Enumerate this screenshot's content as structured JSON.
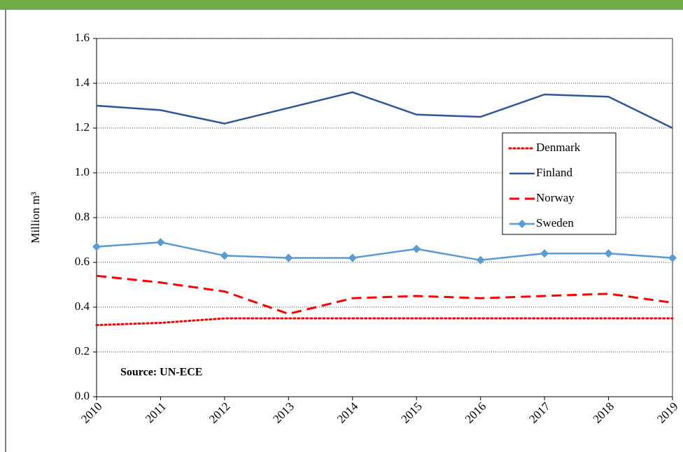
{
  "chart_data": {
    "type": "line",
    "y_label": "Million m³",
    "annotation": "Source: UN-ECE",
    "categories": [
      "2010",
      "2011",
      "2012",
      "2013",
      "2014",
      "2015",
      "2016",
      "2017",
      "2018",
      "2019"
    ],
    "series": [
      {
        "name": "Denmark",
        "color": "#ff0000",
        "dash": "dotted",
        "values": [
          0.32,
          0.33,
          0.35,
          0.35,
          0.35,
          0.35,
          0.35,
          0.35,
          0.35,
          0.35
        ]
      },
      {
        "name": "Finland",
        "color": "#2f5597",
        "dash": "solid",
        "values": [
          1.3,
          1.28,
          1.22,
          1.29,
          1.36,
          1.26,
          1.25,
          1.35,
          1.34,
          1.2
        ]
      },
      {
        "name": "Norway",
        "color": "#ff0000",
        "dash": "dashed",
        "values": [
          0.54,
          0.51,
          0.47,
          0.37,
          0.44,
          0.45,
          0.44,
          0.45,
          0.46,
          0.42
        ]
      },
      {
        "name": "Sweden",
        "color": "#5b9bd5",
        "dash": "solid",
        "marker": "diamond",
        "values": [
          0.67,
          0.69,
          0.63,
          0.62,
          0.62,
          0.66,
          0.61,
          0.64,
          0.64,
          0.62
        ]
      }
    ],
    "ylim": [
      0,
      1.6
    ],
    "yticks": [
      {
        "value": 0,
        "label": "0.0"
      },
      0.2,
      0.4,
      0.6,
      0.8,
      {
        "value": 1,
        "label": "1.0"
      },
      1.2,
      1.4,
      1.6
    ],
    "grid": true
  }
}
